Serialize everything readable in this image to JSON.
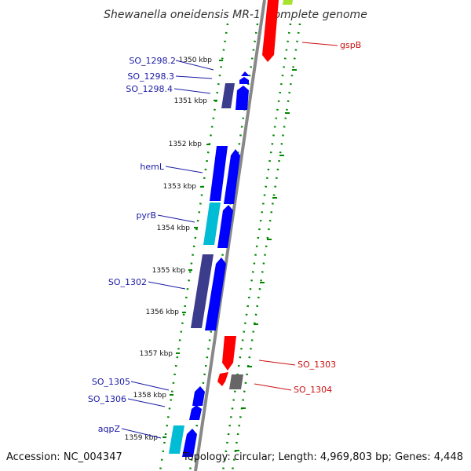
{
  "title": "Shewanella oneidensis MR-1, complete genome",
  "footer": {
    "accession": "Accession: NC_004347",
    "topology": "Topology: circular; Length: 4,969,803 bp; Genes: 4,448"
  },
  "colors": {
    "forward_cds": "#0000ff",
    "reverse_cds": "#ff0000",
    "rna_teal": "#00bcd4",
    "dark_purple": "#3c3c8c",
    "gray_gene": "#666666",
    "tick_green": "#008800",
    "backbone": "#888888"
  },
  "ticks": [
    "1350 kbp",
    "1351 kbp",
    "1352 kbp",
    "1353 kbp",
    "1354 kbp",
    "1355 kbp",
    "1356 kbp",
    "1357 kbp",
    "1358 kbp",
    "1359 kbp"
  ],
  "left_labels": [
    "SO_1298.2",
    "SO_1298.3",
    "SO_1298.4",
    "hemL",
    "pyrB",
    "SO_1302",
    "SO_1305",
    "SO_1306",
    "aqpZ"
  ],
  "right_labels": [
    "gspB",
    "SO_1303",
    "SO_1304"
  ]
}
